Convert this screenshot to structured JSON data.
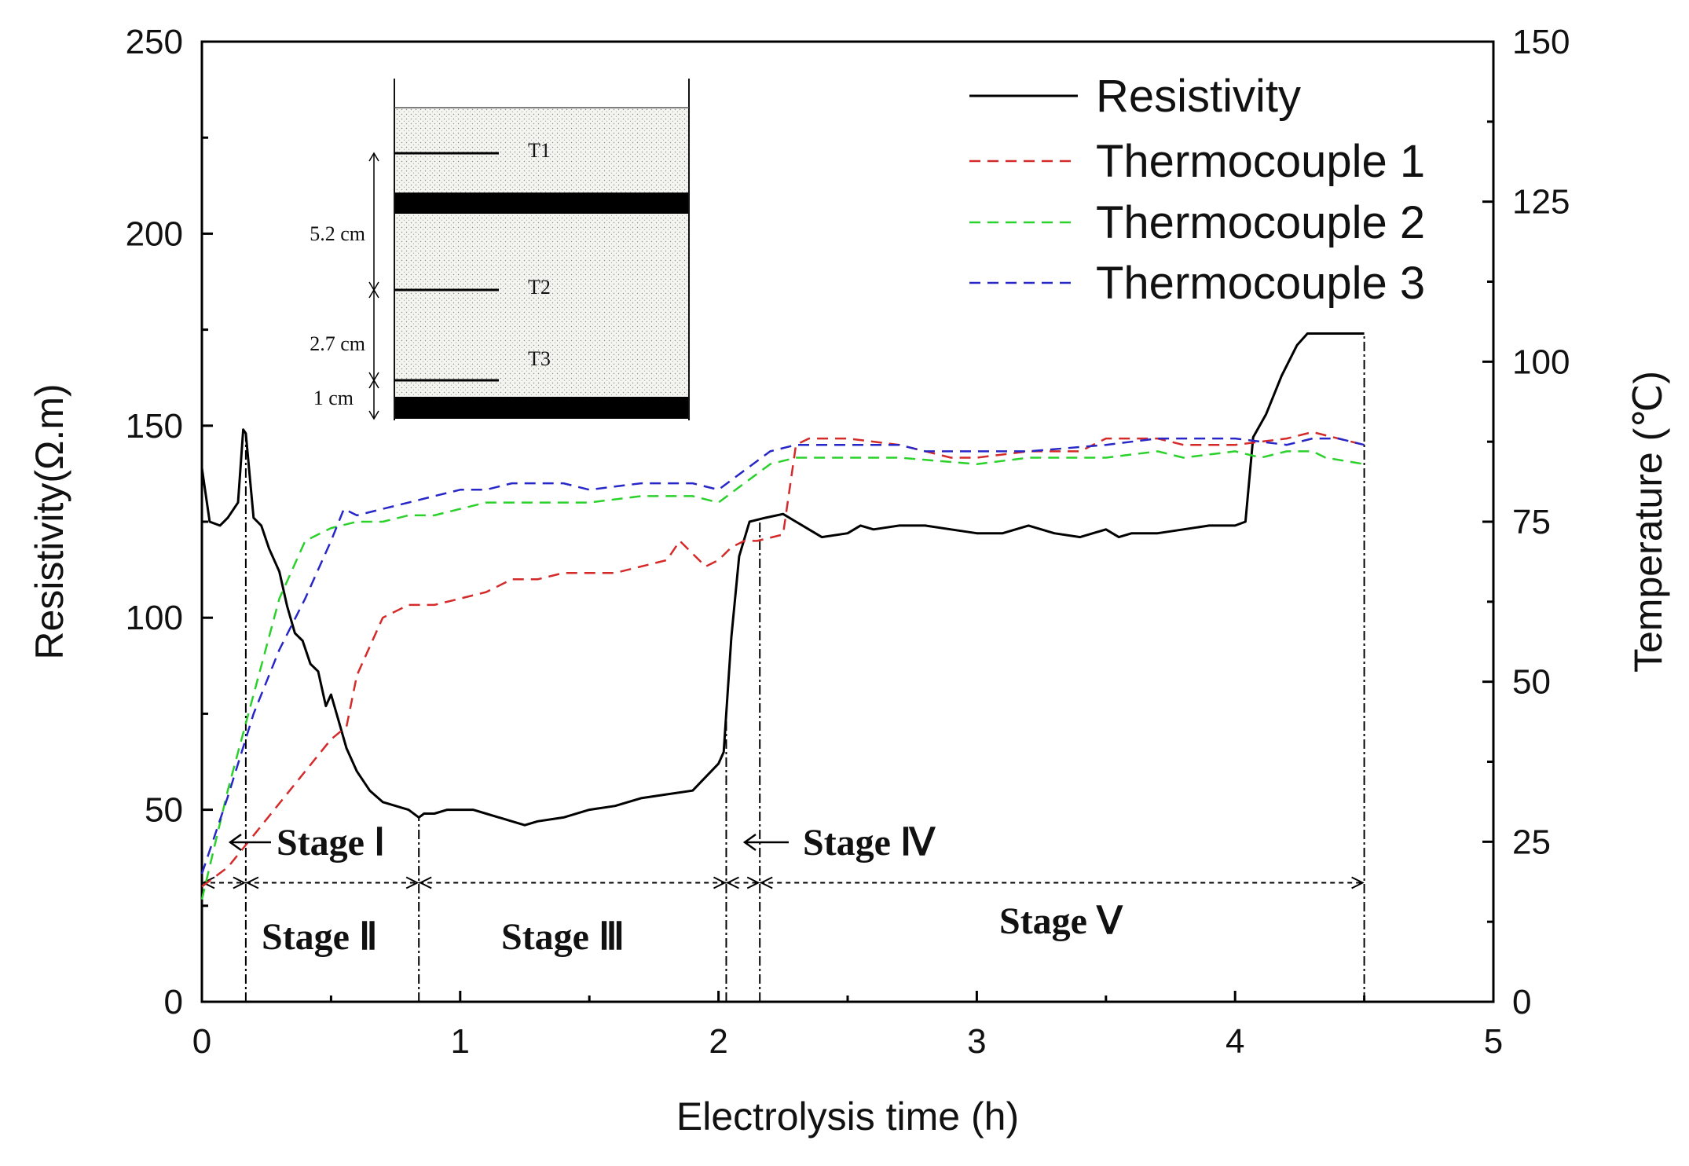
{
  "chart_data": {
    "type": "line",
    "xlabel": "Electrolysis time (h)",
    "ylabel_left": "Resistivity(Ω.m)",
    "ylabel_right": "Temperature (℃)",
    "xlim": [
      0,
      5
    ],
    "ylim_left": [
      0,
      250
    ],
    "ylim_right": [
      0,
      150
    ],
    "x_ticks": [
      "0",
      "1",
      "2",
      "3",
      "4",
      "5"
    ],
    "y_left_ticks": [
      "0",
      "50",
      "100",
      "150",
      "200",
      "250"
    ],
    "y_right_ticks": [
      "0",
      "25",
      "50",
      "75",
      "100",
      "125",
      "150"
    ],
    "legend_position": "top-right",
    "series": [
      {
        "name": "Resistivity",
        "axis": "left",
        "color": "#000000",
        "style": "solid",
        "points": [
          [
            0.0,
            139
          ],
          [
            0.03,
            125
          ],
          [
            0.07,
            124
          ],
          [
            0.1,
            126
          ],
          [
            0.14,
            130
          ],
          [
            0.16,
            149
          ],
          [
            0.17,
            148
          ],
          [
            0.2,
            126
          ],
          [
            0.23,
            124
          ],
          [
            0.26,
            118
          ],
          [
            0.3,
            112
          ],
          [
            0.33,
            103
          ],
          [
            0.36,
            96
          ],
          [
            0.39,
            94
          ],
          [
            0.42,
            88
          ],
          [
            0.45,
            86
          ],
          [
            0.48,
            77
          ],
          [
            0.5,
            80
          ],
          [
            0.53,
            73
          ],
          [
            0.56,
            66
          ],
          [
            0.6,
            60
          ],
          [
            0.65,
            55
          ],
          [
            0.7,
            52
          ],
          [
            0.75,
            51
          ],
          [
            0.8,
            50
          ],
          [
            0.84,
            48
          ],
          [
            0.86,
            49
          ],
          [
            0.9,
            49
          ],
          [
            0.95,
            50
          ],
          [
            1.0,
            50
          ],
          [
            1.05,
            50
          ],
          [
            1.1,
            49
          ],
          [
            1.2,
            47
          ],
          [
            1.25,
            46
          ],
          [
            1.3,
            47
          ],
          [
            1.4,
            48
          ],
          [
            1.5,
            50
          ],
          [
            1.6,
            51
          ],
          [
            1.65,
            52
          ],
          [
            1.7,
            53
          ],
          [
            1.8,
            54
          ],
          [
            1.9,
            55
          ],
          [
            2.0,
            62
          ],
          [
            2.02,
            65
          ],
          [
            2.05,
            95
          ],
          [
            2.08,
            116
          ],
          [
            2.12,
            125
          ],
          [
            2.18,
            126
          ],
          [
            2.25,
            127
          ],
          [
            2.3,
            125
          ],
          [
            2.35,
            123
          ],
          [
            2.4,
            121
          ],
          [
            2.5,
            122
          ],
          [
            2.55,
            124
          ],
          [
            2.6,
            123
          ],
          [
            2.7,
            124
          ],
          [
            2.8,
            124
          ],
          [
            2.9,
            123
          ],
          [
            3.0,
            122
          ],
          [
            3.1,
            122
          ],
          [
            3.2,
            124
          ],
          [
            3.3,
            122
          ],
          [
            3.4,
            121
          ],
          [
            3.5,
            123
          ],
          [
            3.55,
            121
          ],
          [
            3.6,
            122
          ],
          [
            3.7,
            122
          ],
          [
            3.8,
            123
          ],
          [
            3.9,
            124
          ],
          [
            4.0,
            124
          ],
          [
            4.04,
            125
          ],
          [
            4.07,
            147
          ],
          [
            4.12,
            153
          ],
          [
            4.18,
            163
          ],
          [
            4.24,
            171
          ],
          [
            4.28,
            174
          ],
          [
            4.35,
            174
          ],
          [
            4.5,
            174
          ]
        ]
      },
      {
        "name": "Thermocouple 1",
        "axis": "right",
        "color": "#d42a2a",
        "style": "dashed",
        "points": [
          [
            0.0,
            18
          ],
          [
            0.1,
            21
          ],
          [
            0.2,
            26
          ],
          [
            0.3,
            31
          ],
          [
            0.4,
            36
          ],
          [
            0.5,
            41
          ],
          [
            0.56,
            43
          ],
          [
            0.6,
            51
          ],
          [
            0.7,
            60
          ],
          [
            0.8,
            62
          ],
          [
            0.9,
            62
          ],
          [
            1.0,
            63
          ],
          [
            1.1,
            64
          ],
          [
            1.2,
            66
          ],
          [
            1.3,
            66
          ],
          [
            1.4,
            67
          ],
          [
            1.5,
            67
          ],
          [
            1.6,
            67
          ],
          [
            1.7,
            68
          ],
          [
            1.8,
            69
          ],
          [
            1.85,
            72
          ],
          [
            1.9,
            70
          ],
          [
            1.95,
            68
          ],
          [
            2.0,
            69
          ],
          [
            2.05,
            71
          ],
          [
            2.1,
            72
          ],
          [
            2.15,
            72
          ],
          [
            2.25,
            73
          ],
          [
            2.3,
            87
          ],
          [
            2.35,
            88
          ],
          [
            2.5,
            88
          ],
          [
            2.7,
            87
          ],
          [
            2.9,
            85
          ],
          [
            3.0,
            85
          ],
          [
            3.2,
            86
          ],
          [
            3.4,
            86
          ],
          [
            3.5,
            88
          ],
          [
            3.7,
            88
          ],
          [
            3.8,
            87
          ],
          [
            4.0,
            87
          ],
          [
            4.2,
            88
          ],
          [
            4.3,
            89
          ],
          [
            4.4,
            88
          ],
          [
            4.5,
            87
          ]
        ]
      },
      {
        "name": "Thermocouple 2",
        "axis": "right",
        "color": "#2bd12b",
        "style": "dashed",
        "points": [
          [
            0.0,
            16
          ],
          [
            0.1,
            33
          ],
          [
            0.2,
            48
          ],
          [
            0.3,
            63
          ],
          [
            0.4,
            72
          ],
          [
            0.5,
            74
          ],
          [
            0.6,
            75
          ],
          [
            0.7,
            75
          ],
          [
            0.8,
            76
          ],
          [
            0.9,
            76
          ],
          [
            1.0,
            77
          ],
          [
            1.1,
            78
          ],
          [
            1.2,
            78
          ],
          [
            1.3,
            78
          ],
          [
            1.5,
            78
          ],
          [
            1.7,
            79
          ],
          [
            1.9,
            79
          ],
          [
            2.0,
            78
          ],
          [
            2.1,
            81
          ],
          [
            2.2,
            84
          ],
          [
            2.3,
            85
          ],
          [
            2.5,
            85
          ],
          [
            2.7,
            85
          ],
          [
            3.0,
            84
          ],
          [
            3.2,
            85
          ],
          [
            3.5,
            85
          ],
          [
            3.7,
            86
          ],
          [
            3.8,
            85
          ],
          [
            4.0,
            86
          ],
          [
            4.1,
            85
          ],
          [
            4.2,
            86
          ],
          [
            4.3,
            86
          ],
          [
            4.35,
            85
          ],
          [
            4.5,
            84
          ]
        ]
      },
      {
        "name": "Thermocouple 3",
        "axis": "right",
        "color": "#2727c8",
        "style": "dashed",
        "points": [
          [
            0.0,
            20
          ],
          [
            0.1,
            32
          ],
          [
            0.2,
            45
          ],
          [
            0.3,
            55
          ],
          [
            0.4,
            63
          ],
          [
            0.5,
            72
          ],
          [
            0.55,
            77
          ],
          [
            0.6,
            76
          ],
          [
            0.7,
            77
          ],
          [
            0.8,
            78
          ],
          [
            0.9,
            79
          ],
          [
            1.0,
            80
          ],
          [
            1.1,
            80
          ],
          [
            1.2,
            81
          ],
          [
            1.3,
            81
          ],
          [
            1.4,
            81
          ],
          [
            1.5,
            80
          ],
          [
            1.7,
            81
          ],
          [
            1.9,
            81
          ],
          [
            2.0,
            80
          ],
          [
            2.1,
            83
          ],
          [
            2.2,
            86
          ],
          [
            2.3,
            87
          ],
          [
            2.5,
            87
          ],
          [
            2.7,
            87
          ],
          [
            2.8,
            86
          ],
          [
            3.0,
            86
          ],
          [
            3.2,
            86
          ],
          [
            3.5,
            87
          ],
          [
            3.7,
            88
          ],
          [
            4.0,
            88
          ],
          [
            4.2,
            87
          ],
          [
            4.3,
            88
          ],
          [
            4.4,
            88
          ],
          [
            4.5,
            87
          ]
        ]
      }
    ],
    "stage_boundaries": [
      0.17,
      0.84,
      2.03,
      2.16,
      4.5
    ],
    "stages": [
      {
        "label": "Stage Ⅰ",
        "x_from": 0.0,
        "x_to": 0.17
      },
      {
        "label": "Stage Ⅱ",
        "x_from": 0.17,
        "x_to": 0.84
      },
      {
        "label": "Stage Ⅲ",
        "x_from": 0.84,
        "x_to": 2.03
      },
      {
        "label": "Stage Ⅳ",
        "x_from": 2.03,
        "x_to": 2.16
      },
      {
        "label": "Stage Ⅴ",
        "x_from": 2.16,
        "x_to": 4.5
      }
    ],
    "stage_arrow_level": 31,
    "inset": {
      "labels": [
        "T1",
        "T2",
        "T3"
      ],
      "dimensions": [
        "5.2 cm",
        "2.7 cm",
        "1 cm"
      ]
    }
  }
}
